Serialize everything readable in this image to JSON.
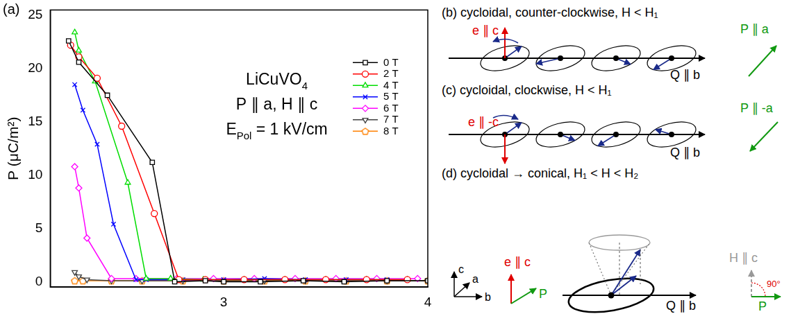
{
  "chart_data": {
    "type": "line",
    "panel_label": "(a)",
    "y_label": "P (μC/m²)",
    "annotations": [
      [
        {
          "text": "LiCuVO"
        },
        {
          "text": "4",
          "sub": true
        }
      ],
      [
        {
          "text": "P ∥ a, H ∥ c"
        }
      ],
      [
        {
          "text": "E"
        },
        {
          "text": "Pol",
          "sub": true
        },
        {
          "text": " = 1 kV/cm"
        }
      ]
    ],
    "xlim": [
      2.15,
      4
    ],
    "xticks": [
      3,
      4
    ],
    "ylim": [
      -0.5,
      25.5
    ],
    "yticks": [
      0,
      5,
      10,
      15,
      20,
      25
    ],
    "grid": false,
    "legend": "upper right",
    "series": [
      {
        "name": "0 T",
        "color": "#000000",
        "marker": "square",
        "x": [
          2.24,
          2.29,
          2.43,
          2.65,
          2.76,
          2.91,
          3.0,
          3.18,
          3.39,
          3.59,
          3.8,
          4.0
        ],
        "values": [
          22.6,
          20.6,
          17.5,
          11.2,
          0,
          0.1,
          0,
          0,
          0.1,
          0,
          0.1,
          0.1
        ]
      },
      {
        "name": "2 T",
        "color": "#ff0000",
        "marker": "circle",
        "x": [
          2.25,
          2.29,
          2.38,
          2.5,
          2.66,
          2.78,
          2.91,
          3.1,
          3.3,
          3.5,
          3.7,
          3.9
        ],
        "values": [
          22.2,
          21.1,
          19.1,
          14.6,
          6.4,
          0.2,
          0.2,
          0.2,
          0.2,
          0.2,
          0.2,
          0.2
        ]
      },
      {
        "name": "4 T",
        "color": "#00dd00",
        "marker": "triangle",
        "x": [
          2.27,
          2.29,
          2.37,
          2.53,
          2.62,
          2.74,
          2.9,
          3.1,
          3.3,
          3.5,
          3.7,
          3.9
        ],
        "values": [
          23.4,
          21.7,
          18.8,
          9.3,
          0.3,
          0.3,
          0.2,
          0.2,
          0.2,
          0.2,
          0.2,
          0.2
        ]
      },
      {
        "name": "5 T",
        "color": "#0000ff",
        "marker": "cross",
        "x": [
          2.27,
          2.31,
          2.38,
          2.46,
          2.57,
          2.62,
          2.8,
          3.0,
          3.2,
          3.4,
          3.6,
          3.8
        ],
        "values": [
          18.5,
          16.1,
          12.9,
          5.4,
          0.2,
          0.2,
          0.2,
          0.2,
          0.3,
          0.2,
          0.2,
          0.2
        ]
      },
      {
        "name": "6 T",
        "color": "#ff00ff",
        "marker": "diamond",
        "x": [
          2.27,
          2.29,
          2.33,
          2.45,
          2.57,
          2.77,
          2.95,
          3.15,
          3.35,
          3.55,
          3.75,
          3.95
        ],
        "values": [
          10.8,
          8.8,
          4.1,
          0.3,
          0.3,
          0.3,
          0.3,
          0.3,
          0.3,
          0.3,
          0.3,
          0.3
        ]
      },
      {
        "name": "7 T",
        "color": "#404040",
        "marker": "triangle_down",
        "x": [
          2.27,
          2.29,
          2.33,
          2.45,
          2.6,
          2.8,
          3.0,
          3.2,
          3.4,
          3.6,
          3.8,
          4.0
        ],
        "values": [
          0.9,
          0.5,
          0.2,
          0.1,
          0.1,
          0.1,
          0.1,
          0.1,
          0.1,
          0.1,
          0.1,
          0.1
        ]
      },
      {
        "name": "8 T",
        "color": "#ff8000",
        "marker": "pentagon",
        "x": [
          2.27,
          2.31,
          2.45,
          2.6,
          2.8,
          3.0,
          3.2,
          3.4,
          3.6,
          3.8,
          4.0
        ],
        "values": [
          0.1,
          0.1,
          0.1,
          0.1,
          0.1,
          0.1,
          0.1,
          0.1,
          0.1,
          0.1,
          0.1
        ]
      }
    ]
  },
  "diagrams": [
    {
      "label": "(b)",
      "title": "cycloidal, counter-clockwise, H < H₁",
      "spin_vector": "e ∥ c",
      "propagation": "Q ∥ b",
      "polarization": "P ∥ a"
    },
    {
      "label": "(c)",
      "title": "cycloidal, clockwise, H < H₁",
      "spin_vector": "e ∥ -c",
      "propagation": "Q ∥ b",
      "polarization": "P ∥ -a"
    },
    {
      "label": "(d)",
      "title": "cycloidal → conical, H₁ < H < H₂",
      "axes": [
        "c",
        "a",
        "b"
      ],
      "spin_vector": "e ∥ c",
      "polarization": "P",
      "propagation": "Q ∥ b",
      "field": "H ∥ c",
      "angle": "90°",
      "field_polarization": "P"
    }
  ]
}
